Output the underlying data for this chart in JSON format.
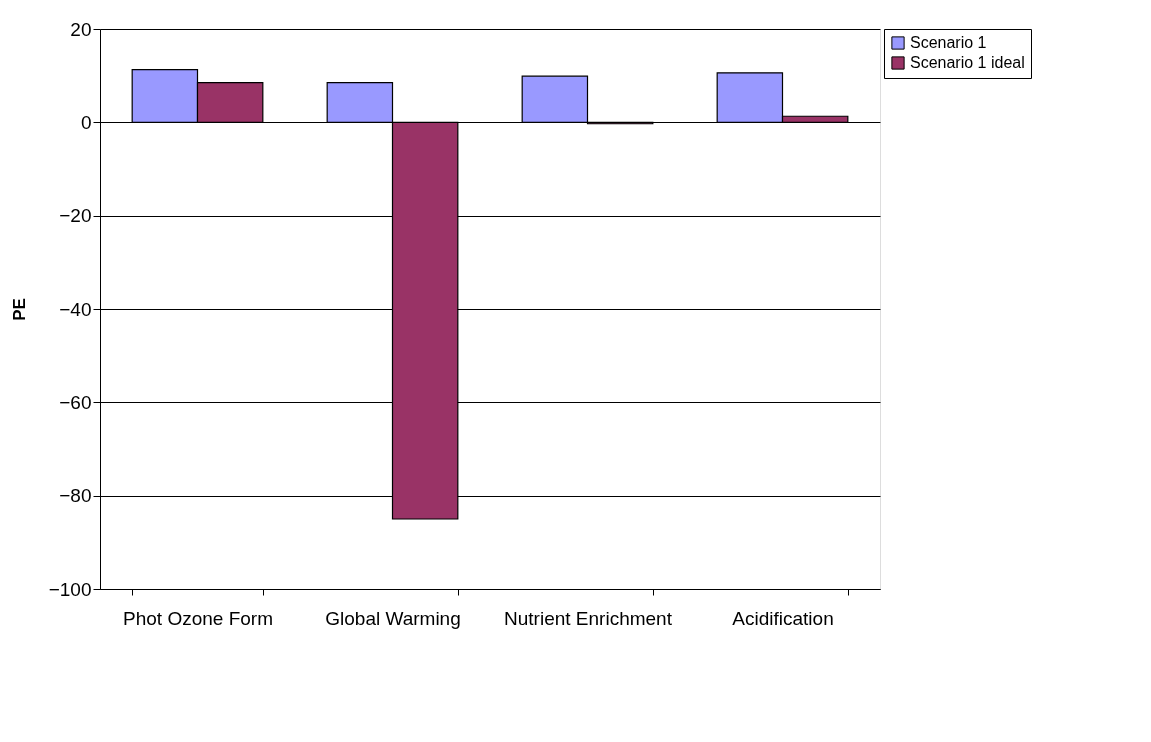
{
  "chart_data": {
    "type": "bar",
    "ylabel": "PE",
    "categories": [
      "Phot Ozone Form",
      "Global Warming",
      "Nutrient Enrichment",
      "Acidification"
    ],
    "series": [
      {
        "name": "Scenario 1",
        "color": "#9999ff",
        "values": [
          11.3,
          8.5,
          9.9,
          10.6
        ]
      },
      {
        "name": "Scenario 1 ideal",
        "color": "#993366",
        "values": [
          8.5,
          -85,
          -0.3,
          1.3
        ]
      }
    ],
    "ylim": [
      -100,
      20
    ],
    "yticks": [
      -100,
      -80,
      -60,
      -40,
      -20,
      0,
      20
    ],
    "grid": "y",
    "legend": "right"
  }
}
